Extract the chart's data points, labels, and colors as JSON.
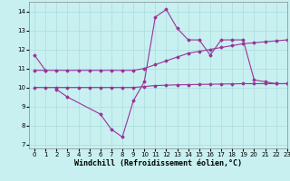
{
  "xlabel": "Windchill (Refroidissement éolien,°C)",
  "background_color": "#c8f0f0",
  "line_color": "#993399",
  "ylim": [
    6.8,
    14.5
  ],
  "xlim": [
    -0.5,
    23
  ],
  "yticks": [
    7,
    8,
    9,
    10,
    11,
    12,
    13,
    14
  ],
  "xticks": [
    0,
    1,
    2,
    3,
    4,
    5,
    6,
    7,
    8,
    9,
    10,
    11,
    12,
    13,
    14,
    15,
    16,
    17,
    18,
    19,
    20,
    21,
    22,
    23
  ],
  "grid_color": "#aadddd",
  "marker": "D",
  "markersize": 1.5,
  "linewidth": 0.8,
  "tick_labelsize": 5,
  "xlabel_fontsize": 6,
  "line1_x": [
    0,
    1
  ],
  "line1_y": [
    11.7,
    10.9
  ],
  "line2_x": [
    2,
    3,
    6,
    7,
    8,
    9,
    10,
    11,
    12,
    13,
    14,
    15,
    16,
    17,
    18,
    19,
    20,
    21,
    22,
    23
  ],
  "line2_y": [
    9.9,
    9.5,
    8.6,
    7.8,
    7.4,
    9.3,
    10.3,
    13.7,
    14.1,
    13.1,
    12.5,
    12.5,
    11.7,
    12.5,
    12.5,
    12.5,
    10.4,
    10.3,
    10.2,
    10.2
  ],
  "line3_x": [
    0,
    1,
    2,
    3,
    4,
    5,
    6,
    7,
    8,
    9,
    10,
    11,
    12,
    13,
    14,
    15,
    16,
    17,
    18,
    19,
    20,
    21,
    22,
    23
  ],
  "line3_y": [
    10.9,
    10.9,
    10.9,
    10.9,
    10.9,
    10.9,
    10.9,
    10.9,
    10.9,
    10.9,
    11.0,
    11.2,
    11.4,
    11.6,
    11.8,
    11.9,
    12.0,
    12.1,
    12.2,
    12.3,
    12.35,
    12.4,
    12.45,
    12.5
  ],
  "line4_x": [
    0,
    1,
    2,
    3,
    4,
    5,
    6,
    7,
    8,
    9,
    10,
    11,
    12,
    13,
    14,
    15,
    16,
    17,
    18,
    19,
    20,
    21,
    22,
    23
  ],
  "line4_y": [
    10.0,
    10.0,
    10.0,
    10.0,
    10.0,
    10.0,
    10.0,
    10.0,
    10.0,
    10.0,
    10.05,
    10.1,
    10.12,
    10.14,
    10.15,
    10.16,
    10.17,
    10.18,
    10.19,
    10.2,
    10.2,
    10.2,
    10.2,
    10.2
  ]
}
